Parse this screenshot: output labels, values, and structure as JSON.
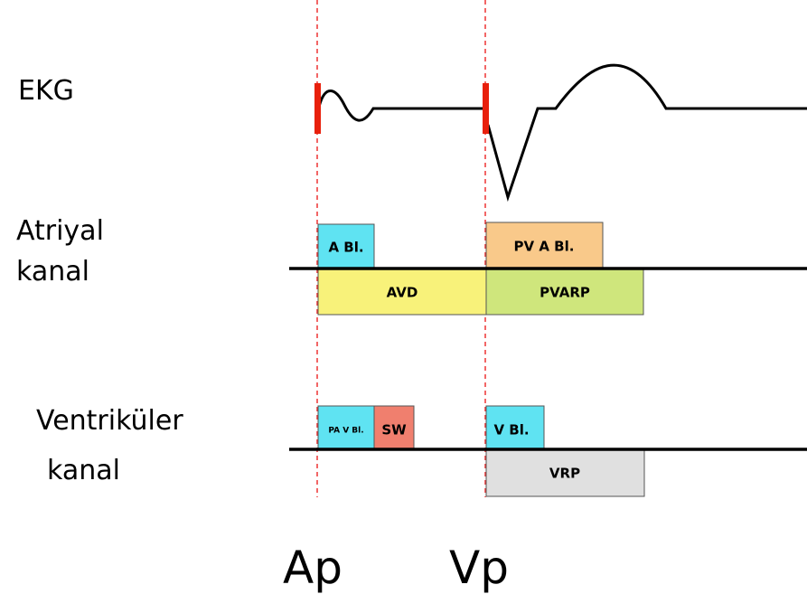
{
  "labels": {
    "ekg": "EKG",
    "atrial": [
      "Atriyal",
      "kanal"
    ],
    "ventricular": [
      "Ventriküler",
      "kanal"
    ]
  },
  "atrial_boxes": [
    "A Bl.",
    "PV A Bl.",
    "AVD",
    "PVARP"
  ],
  "ventricular_boxes": [
    "PA V Bl.",
    "SW",
    "V Bl.",
    "VRP"
  ],
  "events": [
    "Ap",
    "Vp"
  ]
}
